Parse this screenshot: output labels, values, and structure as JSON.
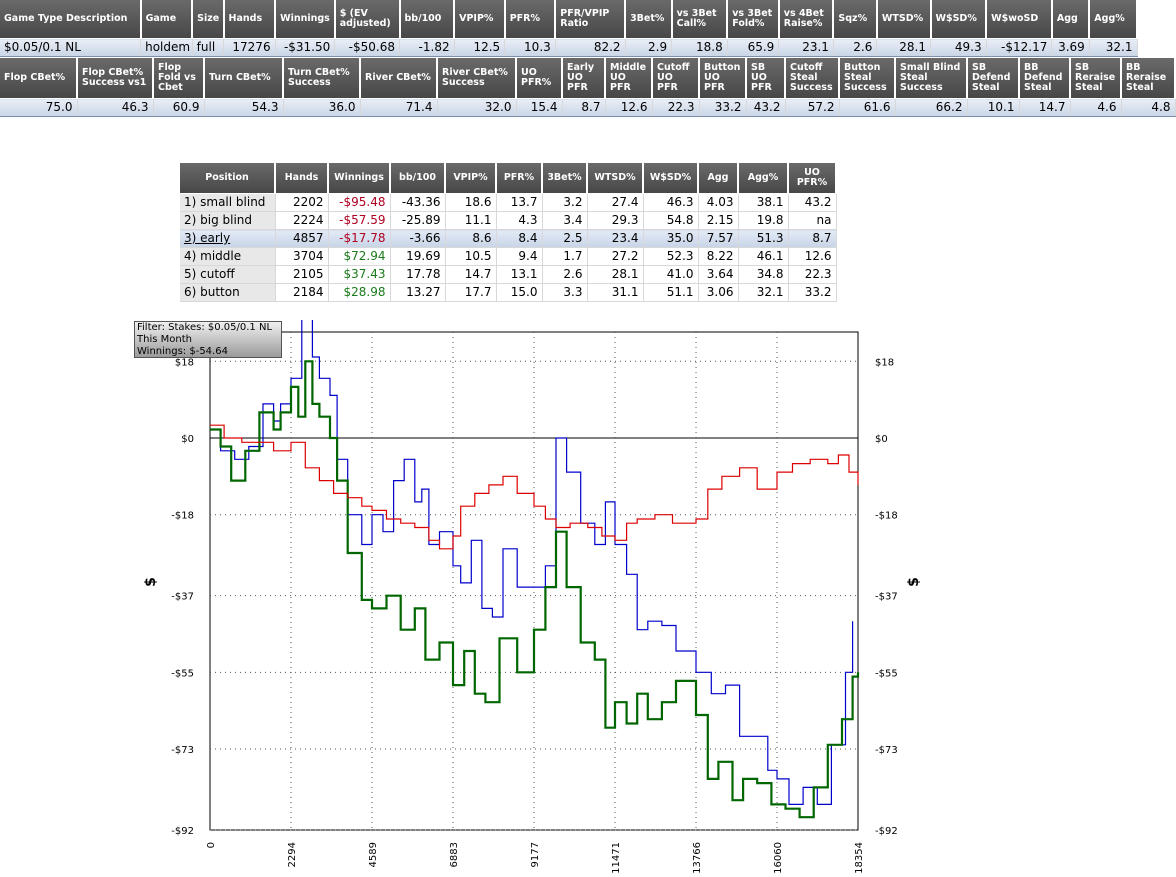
{
  "summary": {
    "headers": [
      "Game Type Description",
      "Game",
      "Size",
      "Hands",
      "Winnings",
      "$ (EV adjusted)",
      "bb/100",
      "VPIP%",
      "PFR%",
      "PFR/VPIP Ratio",
      "3Bet%",
      "vs 3Bet Call%",
      "vs 3Bet Fold%",
      "vs 4Bet Raise%",
      "Sqz%",
      "WTSD%",
      "W$SD%",
      "W$woSD",
      "Agg",
      "Agg%"
    ],
    "row": [
      "$0.05/0.1 NL",
      "holdem",
      "full",
      "17276",
      "-$31.50",
      "-$50.68",
      "-1.82",
      "12.5",
      "10.3",
      "82.2",
      "2.9",
      "18.8",
      "65.9",
      "23.1",
      "2.6",
      "28.1",
      "49.3",
      "-$12.17",
      "3.69",
      "32.1"
    ]
  },
  "postflop": {
    "headers": [
      "Flop CBet%",
      "Flop CBet% Success vs1",
      "Flop Fold vs Cbet",
      "Turn CBet%",
      "Turn CBet% Success",
      "River CBet%",
      "River CBet% Success",
      "UO PFR%",
      "Early UO PFR",
      "Middle UO PFR",
      "Cutoff UO PFR",
      "Button UO PFR",
      "SB UO PFR",
      "Cutoff Steal Success",
      "Button Steal Success",
      "Small Blind Steal Success",
      "SB Defend Steal",
      "BB Defend Steal",
      "SB Reraise Steal",
      "BB Reraise Steal"
    ],
    "row": [
      "75.0",
      "46.3",
      "60.9",
      "54.3",
      "36.0",
      "71.4",
      "32.0",
      "15.4",
      "8.7",
      "12.6",
      "22.3",
      "33.2",
      "43.2",
      "57.2",
      "61.6",
      "66.2",
      "10.1",
      "14.7",
      "4.6",
      "4.8"
    ]
  },
  "positions": {
    "headers": [
      "Position",
      "Hands",
      "Winnings",
      "bb/100",
      "VPIP%",
      "PFR%",
      "3Bet%",
      "WTSD%",
      "W$SD%",
      "Agg",
      "Agg%",
      "UO PFR%"
    ],
    "rows": [
      [
        "1) small blind",
        "2202",
        "-$95.48",
        "-43.36",
        "18.6",
        "13.7",
        "3.2",
        "27.4",
        "46.3",
        "4.03",
        "38.1",
        "43.2"
      ],
      [
        "2) big blind",
        "2224",
        "-$57.59",
        "-25.89",
        "11.1",
        "4.3",
        "3.4",
        "29.3",
        "54.8",
        "2.15",
        "19.8",
        "na"
      ],
      [
        "3) early",
        "4857",
        "-$17.78",
        "-3.66",
        "8.6",
        "8.4",
        "2.5",
        "23.4",
        "35.0",
        "7.57",
        "51.3",
        "8.7"
      ],
      [
        "4) middle",
        "3704",
        "$72.94",
        "19.69",
        "10.5",
        "9.4",
        "1.7",
        "27.2",
        "52.3",
        "8.22",
        "46.1",
        "12.6"
      ],
      [
        "5) cutoff",
        "2105",
        "$37.43",
        "17.78",
        "14.7",
        "13.1",
        "2.6",
        "28.1",
        "41.0",
        "3.64",
        "34.8",
        "22.3"
      ],
      [
        "6) button",
        "2184",
        "$28.98",
        "13.27",
        "17.7",
        "15.0",
        "3.3",
        "31.1",
        "51.1",
        "3.06",
        "32.1",
        "33.2"
      ]
    ],
    "selected_index": 2
  },
  "tooltip": {
    "line1": "Filter: Stakes: $0.05/0.1 NL",
    "line2": "This Month",
    "line3": "Winnings: $-54.64"
  },
  "chart_data": {
    "type": "line",
    "ylabel": "$",
    "x_ticks": [
      0,
      2294,
      4589,
      6883,
      9177,
      11471,
      13766,
      16060,
      18354
    ],
    "y_ticks": [
      18,
      0,
      -18,
      -37,
      -55,
      -73,
      -92
    ],
    "y_tick_labels": [
      "$18",
      "$0",
      "-$18",
      "-$37",
      "-$55",
      "-$73",
      "-$92"
    ],
    "xlim": [
      0,
      18354
    ],
    "ylim": [
      -92,
      22
    ],
    "grid": true,
    "series": [
      {
        "color": "#0000cc",
        "points": [
          [
            0,
            2
          ],
          [
            300,
            -3
          ],
          [
            700,
            -5
          ],
          [
            1100,
            -2
          ],
          [
            1500,
            8
          ],
          [
            1800,
            4
          ],
          [
            2000,
            8
          ],
          [
            2294,
            14
          ],
          [
            2600,
            30
          ],
          [
            2900,
            19
          ],
          [
            3100,
            14
          ],
          [
            3400,
            10
          ],
          [
            3600,
            -5
          ],
          [
            3900,
            -18
          ],
          [
            4300,
            -25
          ],
          [
            4589,
            -18
          ],
          [
            4900,
            -22
          ],
          [
            5200,
            -10
          ],
          [
            5500,
            -5
          ],
          [
            5800,
            -15
          ],
          [
            6000,
            -12
          ],
          [
            6200,
            -25
          ],
          [
            6500,
            -22
          ],
          [
            6883,
            -30
          ],
          [
            7100,
            -34
          ],
          [
            7400,
            -24
          ],
          [
            7700,
            -40
          ],
          [
            8000,
            -42
          ],
          [
            8300,
            -26
          ],
          [
            8700,
            -35
          ],
          [
            9177,
            -35
          ],
          [
            9500,
            -30
          ],
          [
            9800,
            0
          ],
          [
            10100,
            -8
          ],
          [
            10500,
            -20
          ],
          [
            10900,
            -25
          ],
          [
            11200,
            -15
          ],
          [
            11471,
            -25
          ],
          [
            11800,
            -32
          ],
          [
            12100,
            -45
          ],
          [
            12400,
            -43
          ],
          [
            12800,
            -44
          ],
          [
            13200,
            -50
          ],
          [
            13766,
            -55
          ],
          [
            14200,
            -60
          ],
          [
            14600,
            -58
          ],
          [
            15000,
            -70
          ],
          [
            15400,
            -70
          ],
          [
            15800,
            -78
          ],
          [
            16060,
            -80
          ],
          [
            16400,
            -86
          ],
          [
            16800,
            -82
          ],
          [
            17200,
            -86
          ],
          [
            17600,
            -72
          ],
          [
            18000,
            -55
          ],
          [
            18200,
            -43
          ]
        ]
      },
      {
        "color": "#006600",
        "points": [
          [
            0,
            2
          ],
          [
            300,
            -2
          ],
          [
            600,
            -10
          ],
          [
            1000,
            -3
          ],
          [
            1400,
            6
          ],
          [
            1800,
            2
          ],
          [
            2000,
            6
          ],
          [
            2294,
            12
          ],
          [
            2500,
            5
          ],
          [
            2700,
            18
          ],
          [
            2900,
            8
          ],
          [
            3100,
            5
          ],
          [
            3400,
            0
          ],
          [
            3600,
            -10
          ],
          [
            3900,
            -27
          ],
          [
            4300,
            -38
          ],
          [
            4589,
            -40
          ],
          [
            5000,
            -37
          ],
          [
            5400,
            -45
          ],
          [
            5800,
            -40
          ],
          [
            6100,
            -52
          ],
          [
            6500,
            -48
          ],
          [
            6883,
            -58
          ],
          [
            7200,
            -50
          ],
          [
            7500,
            -60
          ],
          [
            7800,
            -62
          ],
          [
            8200,
            -47
          ],
          [
            8700,
            -55
          ],
          [
            9177,
            -45
          ],
          [
            9500,
            -35
          ],
          [
            9800,
            -22
          ],
          [
            10100,
            -35
          ],
          [
            10500,
            -48
          ],
          [
            10900,
            -52
          ],
          [
            11200,
            -68
          ],
          [
            11471,
            -62
          ],
          [
            11800,
            -67
          ],
          [
            12100,
            -60
          ],
          [
            12400,
            -66
          ],
          [
            12800,
            -62
          ],
          [
            13200,
            -57
          ],
          [
            13766,
            -65
          ],
          [
            14100,
            -80
          ],
          [
            14400,
            -76
          ],
          [
            14800,
            -85
          ],
          [
            15100,
            -80
          ],
          [
            15500,
            -81
          ],
          [
            15900,
            -86
          ],
          [
            16300,
            -87
          ],
          [
            16700,
            -89
          ],
          [
            17100,
            -82
          ],
          [
            17500,
            -72
          ],
          [
            17900,
            -66
          ],
          [
            18200,
            -56
          ],
          [
            18354,
            -55
          ]
        ]
      },
      {
        "color": "#dd0000",
        "points": [
          [
            0,
            3
          ],
          [
            400,
            0
          ],
          [
            900,
            -1
          ],
          [
            1400,
            -1
          ],
          [
            1800,
            -3
          ],
          [
            2294,
            -1
          ],
          [
            2700,
            -7
          ],
          [
            3100,
            -10
          ],
          [
            3500,
            -13
          ],
          [
            3900,
            -14
          ],
          [
            4300,
            -16
          ],
          [
            4589,
            -17
          ],
          [
            5000,
            -19
          ],
          [
            5400,
            -20
          ],
          [
            5800,
            -21
          ],
          [
            6200,
            -24
          ],
          [
            6500,
            -26
          ],
          [
            6883,
            -23
          ],
          [
            7100,
            -16
          ],
          [
            7500,
            -13
          ],
          [
            7900,
            -11
          ],
          [
            8300,
            -9
          ],
          [
            8700,
            -13
          ],
          [
            9177,
            -16
          ],
          [
            9500,
            -19
          ],
          [
            9800,
            -21
          ],
          [
            10200,
            -20
          ],
          [
            10700,
            -21
          ],
          [
            11100,
            -23
          ],
          [
            11471,
            -24
          ],
          [
            11800,
            -20
          ],
          [
            12100,
            -19
          ],
          [
            12600,
            -18
          ],
          [
            13100,
            -20
          ],
          [
            13766,
            -19
          ],
          [
            14100,
            -12
          ],
          [
            14500,
            -9
          ],
          [
            15000,
            -7
          ],
          [
            15500,
            -12
          ],
          [
            16060,
            -8
          ],
          [
            16500,
            -6
          ],
          [
            17000,
            -5
          ],
          [
            17500,
            -6
          ],
          [
            17800,
            -4
          ],
          [
            18100,
            -8
          ],
          [
            18354,
            -11
          ]
        ]
      }
    ]
  }
}
